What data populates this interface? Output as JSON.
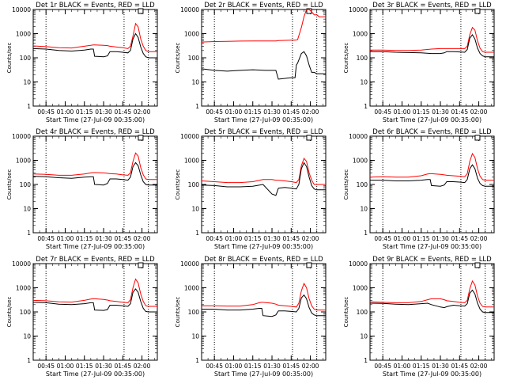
{
  "colors": {
    "events": "#000000",
    "lld": "#ff0000",
    "axes": "#000000",
    "background": "#ffffff"
  },
  "common": {
    "xlabel": "Start Time (27-Jul-09 00:35:00)",
    "ylabel": "Counts/sec",
    "x_ticks": [
      "00:45",
      "01:00",
      "01:15",
      "01:30",
      "01:45",
      "02:00"
    ],
    "y_ticks": [
      "1",
      "10",
      "100",
      "1000",
      "10000"
    ],
    "x_tick_minutes": [
      10,
      25,
      40,
      55,
      70,
      85
    ],
    "xlim_minutes": [
      0,
      97
    ],
    "ylim": [
      1,
      10000
    ],
    "y_scale": "log",
    "vertical_dotted_lines_minutes": [
      10,
      71,
      90
    ],
    "top_marker": "box near x=84"
  },
  "chart_data": [
    {
      "type": "line",
      "title": "Det 1r BLACK = Events, RED = LLD",
      "x_minutes": [
        0,
        10,
        20,
        30,
        40,
        45,
        47,
        48,
        55,
        58,
        60,
        65,
        70,
        74,
        76,
        78,
        80,
        82,
        84,
        86,
        88,
        90,
        92,
        95,
        97
      ],
      "series": [
        {
          "color": "red",
          "values": [
            310,
            290,
            260,
            255,
            300,
            330,
            340,
            340,
            330,
            320,
            300,
            280,
            260,
            240,
            300,
            800,
            2600,
            1900,
            600,
            300,
            200,
            180,
            180,
            180,
            180
          ]
        },
        {
          "color": "black",
          "values": [
            240,
            230,
            200,
            190,
            210,
            230,
            230,
            115,
            110,
            120,
            180,
            180,
            170,
            160,
            200,
            600,
            1000,
            700,
            280,
            150,
            110,
            100,
            100,
            100,
            100
          ]
        }
      ]
    },
    {
      "type": "line",
      "title": "Det 2r BLACK = Events, RED = LLD",
      "x_minutes": [
        0,
        10,
        20,
        30,
        40,
        50,
        58,
        60,
        70,
        73,
        74,
        75,
        78,
        80,
        82,
        84,
        86,
        88,
        90,
        92,
        95,
        97
      ],
      "series": [
        {
          "color": "red",
          "values": [
            450,
            470,
            480,
            490,
            500,
            500,
            500,
            520,
            540,
            540,
            550,
            560,
            1800,
            5000,
            10000,
            10000,
            8000,
            6000,
            6000,
            5000,
            5000,
            5000
          ]
        },
        {
          "color": "black",
          "values": [
            35,
            30,
            28,
            30,
            32,
            30,
            30,
            13,
            15,
            15,
            50,
            60,
            150,
            180,
            120,
            50,
            25,
            25,
            22,
            22,
            22,
            22
          ]
        }
      ]
    },
    {
      "type": "line",
      "title": "Det 3r BLACK = Events, RED = LLD",
      "x_minutes": [
        0,
        10,
        20,
        30,
        40,
        48,
        55,
        58,
        60,
        65,
        70,
        74,
        76,
        78,
        80,
        82,
        84,
        86,
        88,
        90,
        95,
        97
      ],
      "series": [
        {
          "color": "red",
          "values": [
            210,
            210,
            200,
            200,
            210,
            230,
            240,
            240,
            240,
            240,
            240,
            240,
            300,
            900,
            1800,
            1400,
            500,
            250,
            180,
            170,
            170,
            170
          ]
        },
        {
          "color": "black",
          "values": [
            180,
            180,
            170,
            165,
            160,
            150,
            150,
            160,
            180,
            180,
            175,
            170,
            220,
            650,
            900,
            600,
            250,
            150,
            120,
            110,
            110,
            110
          ]
        }
      ]
    },
    {
      "type": "line",
      "title": "Det 4r BLACK = Events, RED = LLD",
      "x_minutes": [
        0,
        10,
        20,
        30,
        40,
        45,
        47,
        48,
        55,
        58,
        60,
        65,
        70,
        74,
        76,
        78,
        80,
        82,
        84,
        86,
        88,
        90,
        95,
        97
      ],
      "series": [
        {
          "color": "red",
          "values": [
            270,
            260,
            240,
            240,
            270,
            300,
            310,
            310,
            300,
            290,
            280,
            270,
            250,
            240,
            300,
            900,
            2000,
            1500,
            500,
            250,
            170,
            160,
            160,
            160
          ]
        },
        {
          "color": "black",
          "values": [
            220,
            210,
            190,
            180,
            200,
            210,
            210,
            100,
            95,
            110,
            170,
            170,
            160,
            150,
            200,
            550,
            800,
            600,
            250,
            130,
            100,
            95,
            95,
            95
          ]
        }
      ]
    },
    {
      "type": "line",
      "title": "Det 5r BLACK = Events, RED = LLD",
      "x_minutes": [
        0,
        10,
        20,
        30,
        40,
        48,
        55,
        58,
        60,
        65,
        70,
        74,
        76,
        78,
        80,
        82,
        84,
        86,
        88,
        90,
        95,
        97
      ],
      "series": [
        {
          "color": "red",
          "values": [
            140,
            130,
            120,
            120,
            130,
            160,
            160,
            150,
            150,
            140,
            130,
            120,
            160,
            600,
            1200,
            900,
            300,
            150,
            100,
            100,
            100,
            100
          ]
        },
        {
          "color": "black",
          "values": [
            95,
            90,
            80,
            80,
            85,
            100,
            40,
            35,
            70,
            75,
            70,
            65,
            100,
            450,
            800,
            550,
            200,
            90,
            65,
            60,
            60,
            60
          ]
        }
      ]
    },
    {
      "type": "line",
      "title": "Det 6r BLACK = Events, RED = LLD",
      "x_minutes": [
        0,
        10,
        20,
        30,
        40,
        45,
        47,
        48,
        55,
        58,
        60,
        65,
        70,
        74,
        76,
        78,
        80,
        82,
        84,
        86,
        88,
        90,
        95,
        97
      ],
      "series": [
        {
          "color": "red",
          "values": [
            200,
            210,
            200,
            200,
            230,
            270,
            280,
            280,
            260,
            250,
            240,
            230,
            220,
            210,
            280,
            900,
            1900,
            1300,
            450,
            220,
            160,
            150,
            150,
            150
          ]
        },
        {
          "color": "black",
          "values": [
            150,
            150,
            140,
            140,
            150,
            160,
            160,
            90,
            85,
            95,
            130,
            130,
            125,
            120,
            160,
            450,
            650,
            450,
            180,
            110,
            90,
            85,
            85,
            85
          ]
        }
      ]
    },
    {
      "type": "line",
      "title": "Det 7r BLACK = Events, RED = LLD",
      "x_minutes": [
        0,
        10,
        20,
        30,
        40,
        45,
        47,
        48,
        55,
        58,
        60,
        65,
        70,
        74,
        76,
        78,
        80,
        82,
        84,
        86,
        88,
        90,
        95,
        97
      ],
      "series": [
        {
          "color": "red",
          "values": [
            300,
            290,
            260,
            255,
            300,
            340,
            350,
            350,
            330,
            310,
            290,
            270,
            250,
            240,
            320,
            1000,
            2300,
            1600,
            550,
            270,
            180,
            170,
            170,
            170
          ]
        },
        {
          "color": "black",
          "values": [
            250,
            240,
            210,
            200,
            220,
            240,
            240,
            120,
            115,
            125,
            190,
            190,
            180,
            170,
            220,
            650,
            900,
            650,
            270,
            140,
            105,
            100,
            100,
            100
          ]
        }
      ]
    },
    {
      "type": "line",
      "title": "Det 8r BLACK = Events, RED = LLD",
      "x_minutes": [
        0,
        10,
        20,
        30,
        40,
        45,
        47,
        48,
        55,
        58,
        60,
        65,
        70,
        74,
        76,
        78,
        80,
        82,
        84,
        86,
        88,
        90,
        95,
        97
      ],
      "series": [
        {
          "color": "red",
          "values": [
            180,
            180,
            175,
            175,
            200,
            240,
            250,
            250,
            230,
            210,
            190,
            180,
            170,
            160,
            230,
            750,
            1500,
            1000,
            350,
            180,
            130,
            120,
            120,
            120
          ]
        },
        {
          "color": "black",
          "values": [
            130,
            130,
            120,
            120,
            130,
            140,
            140,
            70,
            65,
            75,
            110,
            110,
            105,
            100,
            140,
            380,
            500,
            350,
            150,
            90,
            75,
            70,
            70,
            70
          ]
        }
      ]
    },
    {
      "type": "line",
      "title": "Det 9r BLACK = Events, RED = LLD",
      "x_minutes": [
        0,
        10,
        20,
        30,
        40,
        45,
        48,
        55,
        58,
        60,
        65,
        70,
        74,
        76,
        78,
        80,
        82,
        84,
        86,
        88,
        90,
        95,
        97
      ],
      "series": [
        {
          "color": "red",
          "values": [
            260,
            250,
            240,
            240,
            270,
            320,
            350,
            350,
            320,
            290,
            270,
            250,
            240,
            300,
            900,
            1900,
            1300,
            450,
            230,
            170,
            160,
            160,
            160
          ]
        },
        {
          "color": "black",
          "values": [
            230,
            225,
            210,
            200,
            220,
            230,
            200,
            160,
            150,
            165,
            190,
            180,
            175,
            220,
            600,
            800,
            550,
            230,
            130,
            100,
            95,
            95,
            95
          ]
        }
      ]
    }
  ]
}
